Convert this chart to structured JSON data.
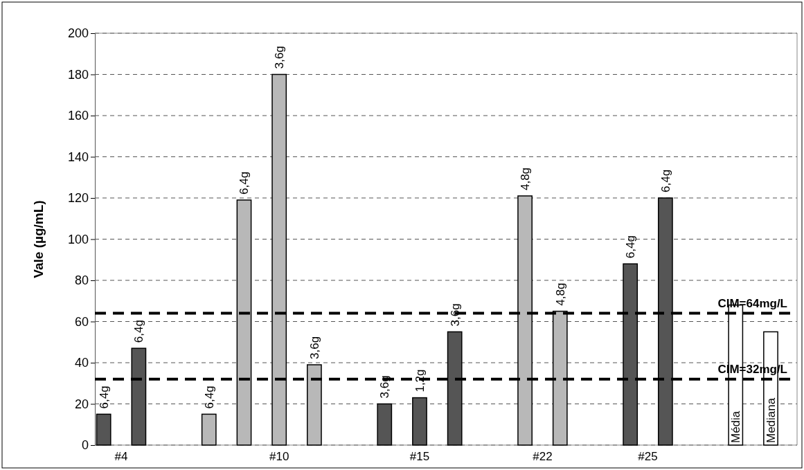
{
  "chart_data": {
    "type": "bar",
    "ylabel": "Vale (µg/mL)",
    "categories": [
      null,
      "#4",
      null,
      null,
      null,
      null,
      null,
      null,
      null,
      null,
      "#10",
      null,
      null,
      null,
      null,
      null,
      null,
      null,
      "#15",
      null,
      null,
      null,
      null,
      null,
      null,
      "#22",
      null,
      null,
      null,
      null,
      null,
      "#25",
      null,
      null,
      null,
      null,
      null,
      null,
      null,
      null
    ],
    "series": [
      {
        "name": "6,4g",
        "color": "#555555",
        "values": [
          15,
          null,
          47,
          null,
          null,
          null,
          null,
          null,
          null,
          null,
          null,
          null,
          null,
          null,
          null,
          null,
          null,
          null,
          null,
          null,
          null,
          null,
          null,
          null,
          null,
          null,
          null,
          null,
          null,
          null,
          88,
          null,
          120,
          null,
          null,
          null,
          null,
          null,
          null,
          null
        ]
      },
      {
        "name": "3,6g",
        "color": "#555555",
        "values": [
          null,
          null,
          null,
          null,
          null,
          null,
          null,
          null,
          null,
          null,
          null,
          null,
          null,
          null,
          null,
          null,
          20,
          null,
          null,
          null,
          55,
          null,
          null,
          null,
          null,
          null,
          null,
          null,
          null,
          null,
          null,
          null,
          null,
          null,
          null,
          null,
          null,
          null,
          null,
          null
        ]
      },
      {
        "name": "1,2g",
        "color": "#555555",
        "values": [
          null,
          null,
          null,
          null,
          null,
          null,
          null,
          null,
          null,
          null,
          null,
          null,
          null,
          null,
          null,
          null,
          null,
          null,
          23,
          null,
          null,
          null,
          null,
          null,
          null,
          null,
          null,
          null,
          null,
          null,
          null,
          null,
          null,
          null,
          null,
          null,
          null,
          null,
          null,
          null
        ]
      },
      {
        "name": "6,4g",
        "color": "#b8b8b8",
        "values": [
          null,
          null,
          null,
          null,
          null,
          null,
          15,
          null,
          119,
          null,
          null,
          null,
          null,
          null,
          null,
          null,
          null,
          null,
          null,
          null,
          null,
          null,
          null,
          null,
          null,
          null,
          null,
          null,
          null,
          null,
          null,
          null,
          null,
          null,
          null,
          null,
          null,
          null,
          null,
          null
        ]
      },
      {
        "name": "3,6g",
        "color": "#b8b8b8",
        "values": [
          null,
          null,
          null,
          null,
          null,
          null,
          null,
          null,
          null,
          null,
          180,
          null,
          39,
          null,
          null,
          null,
          null,
          null,
          null,
          null,
          null,
          null,
          null,
          null,
          null,
          null,
          null,
          null,
          null,
          null,
          null,
          null,
          null,
          null,
          null,
          null,
          null,
          null,
          null,
          null
        ]
      },
      {
        "name": "4,8g",
        "color": "#b8b8b8",
        "values": [
          null,
          null,
          null,
          null,
          null,
          null,
          null,
          null,
          null,
          null,
          null,
          null,
          null,
          null,
          null,
          null,
          null,
          null,
          null,
          null,
          null,
          null,
          null,
          null,
          121,
          null,
          65,
          null,
          null,
          null,
          null,
          null,
          null,
          null,
          null,
          null,
          null,
          null,
          null,
          null
        ]
      },
      {
        "name": "Média",
        "color": "#ffffff",
        "values": [
          null,
          null,
          null,
          null,
          null,
          null,
          null,
          null,
          null,
          null,
          null,
          null,
          null,
          null,
          null,
          null,
          null,
          null,
          null,
          null,
          null,
          null,
          null,
          null,
          null,
          null,
          null,
          null,
          null,
          null,
          null,
          null,
          null,
          null,
          null,
          null,
          68,
          null,
          null,
          null
        ]
      },
      {
        "name": "Mediana",
        "color": "#ffffff",
        "values": [
          null,
          null,
          null,
          null,
          null,
          null,
          null,
          null,
          null,
          null,
          null,
          null,
          null,
          null,
          null,
          null,
          null,
          null,
          null,
          null,
          null,
          null,
          null,
          null,
          null,
          null,
          null,
          null,
          null,
          null,
          null,
          null,
          null,
          null,
          null,
          null,
          null,
          null,
          55,
          null
        ]
      }
    ],
    "ylim": [
      0,
      200
    ],
    "yticks": [
      0,
      20,
      40,
      60,
      80,
      100,
      120,
      140,
      160,
      180,
      200
    ],
    "grid": "y",
    "ref_lines": [
      {
        "axis": "y",
        "value": 64,
        "label": "CIM=64mg/L",
        "color": "#000000",
        "line_style": "dashed"
      },
      {
        "axis": "y",
        "value": 32,
        "label": "CIM=32mg/L",
        "color": "#000000",
        "line_style": "dashed"
      }
    ]
  }
}
